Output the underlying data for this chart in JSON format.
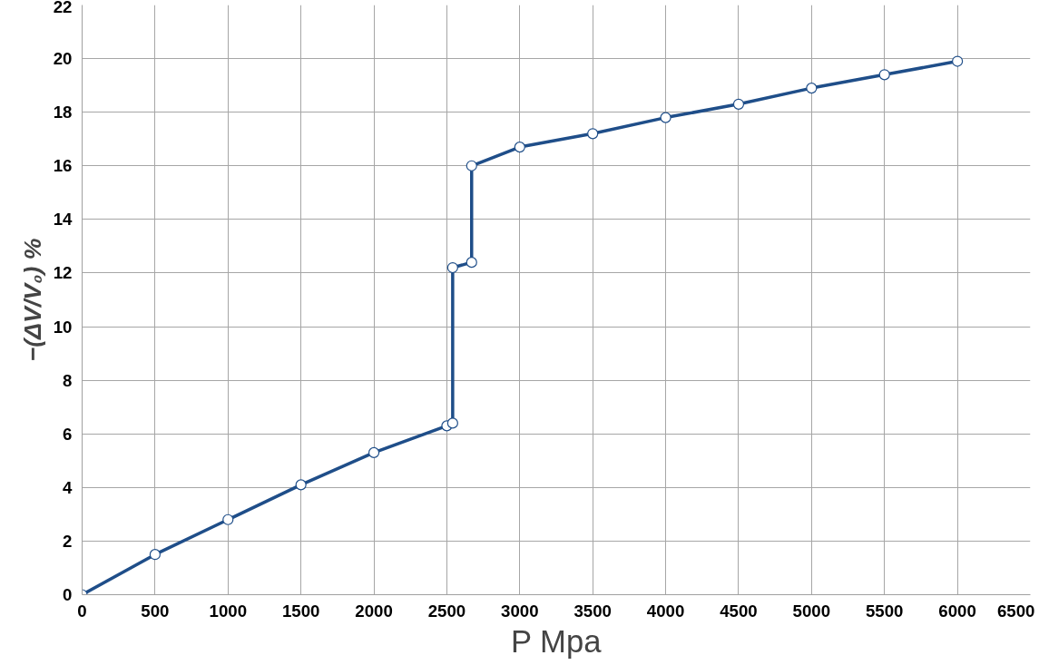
{
  "chart_data": {
    "type": "line",
    "xlabel": "P Mpa",
    "ylabel": "−(ΔV/V₀) %",
    "series": [
      {
        "color": "#1f4e89",
        "x": [
          0,
          500,
          1000,
          1500,
          2000,
          2500,
          2540,
          2540,
          2670,
          2670,
          3000,
          3500,
          4000,
          4500,
          5000,
          5500,
          6000
        ],
        "values": [
          0,
          1.5,
          2.8,
          4.1,
          5.3,
          6.3,
          6.4,
          12.2,
          12.4,
          16.0,
          16.7,
          17.2,
          17.8,
          18.3,
          18.9,
          19.4,
          19.9
        ]
      }
    ],
    "xlim": [
      0,
      6500
    ],
    "xticks": [
      0,
      500,
      1000,
      1500,
      2000,
      2500,
      3000,
      3500,
      4000,
      4500,
      5000,
      5500,
      6000,
      6500
    ],
    "ylim": [
      0,
      22
    ],
    "yticks": [
      0,
      2,
      4,
      6,
      8,
      10,
      12,
      14,
      16,
      18,
      20,
      22
    ],
    "grid": true,
    "marker": "circle",
    "line_style": "solid"
  }
}
